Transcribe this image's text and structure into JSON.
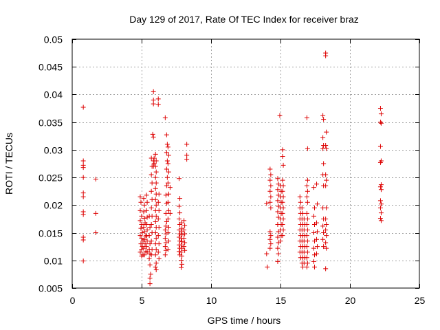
{
  "chart_data": {
    "type": "scatter",
    "title": "Day 129 of 2017, Rate Of TEC Index for receiver braz",
    "xlabel": "GPS time / hours",
    "ylabel": "ROTI / TECUs",
    "xlim": [
      0,
      25
    ],
    "ylim": [
      0.005,
      0.05
    ],
    "xticks": [
      0,
      5,
      10,
      15,
      20,
      25
    ],
    "xtick_labels": [
      "0",
      "5",
      "10",
      "15",
      "20",
      "25"
    ],
    "yticks": [
      0.005,
      0.01,
      0.015,
      0.02,
      0.025,
      0.03,
      0.035,
      0.04,
      0.045,
      0.05
    ],
    "ytick_labels": [
      "0.005",
      "0.01",
      "0.015",
      "0.02",
      "0.025",
      "0.03",
      "0.035",
      "0.04",
      "0.045",
      "0.05"
    ],
    "grid": true,
    "marker": "plus",
    "marker_color": "#dd0000",
    "axis_color": "#000000",
    "grid_color": "#a0a0a0",
    "points": [
      [
        0.8,
        0.0377
      ],
      [
        0.8,
        0.028
      ],
      [
        0.8,
        0.0272
      ],
      [
        0.8,
        0.0268
      ],
      [
        0.8,
        0.025
      ],
      [
        0.8,
        0.0222
      ],
      [
        0.8,
        0.0215
      ],
      [
        0.8,
        0.0188
      ],
      [
        0.8,
        0.0183
      ],
      [
        0.8,
        0.0142
      ],
      [
        0.8,
        0.0137
      ],
      [
        0.8,
        0.0099
      ],
      [
        1.7,
        0.0247
      ],
      [
        1.7,
        0.0185
      ],
      [
        1.7,
        0.015
      ],
      [
        4.9,
        0.0215
      ],
      [
        4.95,
        0.0205
      ],
      [
        4.9,
        0.019
      ],
      [
        5.0,
        0.018
      ],
      [
        4.9,
        0.0172
      ],
      [
        5.0,
        0.0165
      ],
      [
        4.95,
        0.0158
      ],
      [
        5.05,
        0.015
      ],
      [
        4.9,
        0.0145
      ],
      [
        5.0,
        0.014
      ],
      [
        5.1,
        0.0135
      ],
      [
        4.95,
        0.013
      ],
      [
        5.05,
        0.0125
      ],
      [
        5.0,
        0.012
      ],
      [
        4.9,
        0.0115
      ],
      [
        5.1,
        0.011
      ],
      [
        5.0,
        0.0108
      ],
      [
        5.15,
        0.0212
      ],
      [
        5.2,
        0.02
      ],
      [
        5.15,
        0.0188
      ],
      [
        5.2,
        0.0176
      ],
      [
        5.25,
        0.0168
      ],
      [
        5.15,
        0.016
      ],
      [
        5.2,
        0.0152
      ],
      [
        5.3,
        0.0144
      ],
      [
        5.2,
        0.0138
      ],
      [
        5.25,
        0.013
      ],
      [
        5.15,
        0.0122
      ],
      [
        5.3,
        0.0116
      ],
      [
        5.2,
        0.011
      ],
      [
        5.35,
        0.0218
      ],
      [
        5.4,
        0.0205
      ],
      [
        5.35,
        0.019
      ],
      [
        5.4,
        0.0178
      ],
      [
        5.35,
        0.0165
      ],
      [
        5.4,
        0.0155
      ],
      [
        5.35,
        0.0145
      ],
      [
        5.4,
        0.0135
      ],
      [
        5.35,
        0.0125
      ],
      [
        5.4,
        0.0115
      ],
      [
        5.55,
        0.018
      ],
      [
        5.6,
        0.016
      ],
      [
        5.55,
        0.0145
      ],
      [
        5.6,
        0.013
      ],
      [
        5.55,
        0.012
      ],
      [
        5.6,
        0.0112
      ],
      [
        5.55,
        0.0103
      ],
      [
        5.6,
        0.0092
      ],
      [
        5.65,
        0.0075
      ],
      [
        5.6,
        0.0068
      ],
      [
        5.6,
        0.0058
      ],
      [
        5.7,
        0.0285
      ],
      [
        5.75,
        0.027
      ],
      [
        5.7,
        0.0255
      ],
      [
        5.75,
        0.024
      ],
      [
        5.7,
        0.0225
      ],
      [
        5.75,
        0.021
      ],
      [
        5.7,
        0.0195
      ],
      [
        5.75,
        0.018
      ],
      [
        5.7,
        0.0165
      ],
      [
        5.75,
        0.015
      ],
      [
        5.7,
        0.0135
      ],
      [
        5.75,
        0.012
      ],
      [
        5.7,
        0.011
      ],
      [
        5.85,
        0.0405
      ],
      [
        5.85,
        0.039
      ],
      [
        5.85,
        0.0383
      ],
      [
        5.8,
        0.0328
      ],
      [
        5.85,
        0.0323
      ],
      [
        5.9,
        0.0285
      ],
      [
        5.85,
        0.028
      ],
      [
        5.9,
        0.0275
      ],
      [
        5.85,
        0.027
      ],
      [
        6.0,
        0.0292
      ],
      [
        6.05,
        0.028
      ],
      [
        6.0,
        0.027
      ],
      [
        6.05,
        0.026
      ],
      [
        6.0,
        0.025
      ],
      [
        6.05,
        0.024
      ],
      [
        6.0,
        0.023
      ],
      [
        6.05,
        0.022
      ],
      [
        6.0,
        0.021
      ],
      [
        6.05,
        0.02
      ],
      [
        6.0,
        0.019
      ],
      [
        6.05,
        0.018
      ],
      [
        6.0,
        0.017
      ],
      [
        6.05,
        0.016
      ],
      [
        6.0,
        0.015
      ],
      [
        6.05,
        0.014
      ],
      [
        6.0,
        0.013
      ],
      [
        6.05,
        0.012
      ],
      [
        6.0,
        0.011
      ],
      [
        6.05,
        0.0095
      ],
      [
        6.0,
        0.0088
      ],
      [
        6.05,
        0.0083
      ],
      [
        6.2,
        0.0392
      ],
      [
        6.2,
        0.0382
      ],
      [
        6.25,
        0.022
      ],
      [
        6.2,
        0.0205
      ],
      [
        6.25,
        0.019
      ],
      [
        6.2,
        0.0175
      ],
      [
        6.25,
        0.016
      ],
      [
        6.2,
        0.0145
      ],
      [
        6.25,
        0.013
      ],
      [
        6.2,
        0.0115
      ],
      [
        6.25,
        0.0103
      ],
      [
        6.7,
        0.0358
      ],
      [
        6.8,
        0.0327
      ],
      [
        6.85,
        0.031
      ],
      [
        6.8,
        0.0295
      ],
      [
        6.85,
        0.028
      ],
      [
        6.8,
        0.0265
      ],
      [
        6.85,
        0.025
      ],
      [
        6.8,
        0.0235
      ],
      [
        6.75,
        0.0218
      ],
      [
        6.8,
        0.0203
      ],
      [
        6.75,
        0.0185
      ],
      [
        6.8,
        0.017
      ],
      [
        6.75,
        0.0162
      ],
      [
        6.7,
        0.0155
      ],
      [
        6.75,
        0.0148
      ],
      [
        6.7,
        0.014
      ],
      [
        6.75,
        0.0132
      ],
      [
        6.7,
        0.0125
      ],
      [
        6.75,
        0.0118
      ],
      [
        6.7,
        0.011
      ],
      [
        6.9,
        0.0305
      ],
      [
        6.95,
        0.029
      ],
      [
        6.9,
        0.0275
      ],
      [
        6.95,
        0.026
      ],
      [
        6.9,
        0.024
      ],
      [
        6.95,
        0.022
      ],
      [
        6.9,
        0.0205
      ],
      [
        6.95,
        0.019
      ],
      [
        6.9,
        0.0175
      ],
      [
        6.95,
        0.016
      ],
      [
        6.9,
        0.015
      ],
      [
        6.95,
        0.0135
      ],
      [
        6.9,
        0.012
      ],
      [
        7.05,
        0.0232
      ],
      [
        7.05,
        0.0185
      ],
      [
        7.7,
        0.0248
      ],
      [
        7.75,
        0.0212
      ],
      [
        7.7,
        0.0198
      ],
      [
        7.75,
        0.0186
      ],
      [
        7.7,
        0.0175
      ],
      [
        7.75,
        0.0165
      ],
      [
        7.7,
        0.0155
      ],
      [
        7.75,
        0.0148
      ],
      [
        7.7,
        0.0142
      ],
      [
        7.75,
        0.0135
      ],
      [
        7.7,
        0.0128
      ],
      [
        7.75,
        0.0122
      ],
      [
        7.7,
        0.0116
      ],
      [
        7.75,
        0.011
      ],
      [
        7.85,
        0.0168
      ],
      [
        7.9,
        0.0158
      ],
      [
        7.85,
        0.0152
      ],
      [
        7.9,
        0.0146
      ],
      [
        7.85,
        0.014
      ],
      [
        7.9,
        0.0134
      ],
      [
        7.85,
        0.0128
      ],
      [
        7.9,
        0.0122
      ],
      [
        7.85,
        0.0115
      ],
      [
        7.9,
        0.0108
      ],
      [
        7.85,
        0.01
      ],
      [
        7.9,
        0.0093
      ],
      [
        7.85,
        0.0087
      ],
      [
        8.05,
        0.0172
      ],
      [
        8.1,
        0.0163
      ],
      [
        8.05,
        0.0155
      ],
      [
        8.1,
        0.0148
      ],
      [
        8.05,
        0.014
      ],
      [
        8.1,
        0.0132
      ],
      [
        8.05,
        0.0125
      ],
      [
        8.1,
        0.0118
      ],
      [
        8.25,
        0.031
      ],
      [
        8.25,
        0.029
      ],
      [
        8.25,
        0.0283
      ],
      [
        14.0,
        0.0112
      ],
      [
        14.05,
        0.0088
      ],
      [
        14.0,
        0.0203
      ],
      [
        14.25,
        0.0265
      ],
      [
        14.3,
        0.0255
      ],
      [
        14.25,
        0.0245
      ],
      [
        14.3,
        0.0235
      ],
      [
        14.25,
        0.0225
      ],
      [
        14.3,
        0.0215
      ],
      [
        14.25,
        0.0205
      ],
      [
        14.3,
        0.0195
      ],
      [
        14.25,
        0.0152
      ],
      [
        14.3,
        0.0145
      ],
      [
        14.25,
        0.0138
      ],
      [
        14.3,
        0.013
      ],
      [
        14.25,
        0.0122
      ],
      [
        14.8,
        0.0248
      ],
      [
        14.85,
        0.0238
      ],
      [
        14.8,
        0.0228
      ],
      [
        14.85,
        0.0218
      ],
      [
        14.8,
        0.0208
      ],
      [
        14.85,
        0.0198
      ],
      [
        14.8,
        0.0188
      ],
      [
        14.85,
        0.0178
      ],
      [
        14.8,
        0.0165
      ],
      [
        14.85,
        0.0152
      ],
      [
        14.8,
        0.0142
      ],
      [
        14.85,
        0.0132
      ],
      [
        14.8,
        0.0122
      ],
      [
        14.85,
        0.0112
      ],
      [
        14.8,
        0.0098
      ],
      [
        14.95,
        0.0362
      ],
      [
        15.0,
        0.0235
      ],
      [
        15.05,
        0.0225
      ],
      [
        15.0,
        0.0215
      ],
      [
        15.05,
        0.0205
      ],
      [
        15.0,
        0.0195
      ],
      [
        15.05,
        0.0185
      ],
      [
        15.0,
        0.0175
      ],
      [
        15.05,
        0.0165
      ],
      [
        15.0,
        0.0155
      ],
      [
        15.05,
        0.0145
      ],
      [
        15.0,
        0.0135
      ],
      [
        15.15,
        0.03
      ],
      [
        15.15,
        0.0288
      ],
      [
        15.2,
        0.0272
      ],
      [
        15.15,
        0.0245
      ],
      [
        15.2,
        0.0235
      ],
      [
        15.15,
        0.0225
      ],
      [
        15.2,
        0.0215
      ],
      [
        15.15,
        0.0205
      ],
      [
        15.2,
        0.0195
      ],
      [
        15.15,
        0.0185
      ],
      [
        15.2,
        0.0175
      ],
      [
        15.15,
        0.0165
      ],
      [
        15.2,
        0.0155
      ],
      [
        15.15,
        0.0145
      ],
      [
        16.4,
        0.0215
      ],
      [
        16.45,
        0.0205
      ],
      [
        16.4,
        0.0195
      ],
      [
        16.45,
        0.0185
      ],
      [
        16.4,
        0.0175
      ],
      [
        16.45,
        0.0165
      ],
      [
        16.4,
        0.0155
      ],
      [
        16.45,
        0.0145
      ],
      [
        16.4,
        0.0135
      ],
      [
        16.45,
        0.0125
      ],
      [
        16.4,
        0.0115
      ],
      [
        16.45,
        0.0105
      ],
      [
        16.55,
        0.0195
      ],
      [
        16.6,
        0.0185
      ],
      [
        16.55,
        0.0175
      ],
      [
        16.6,
        0.0165
      ],
      [
        16.55,
        0.0155
      ],
      [
        16.6,
        0.0145
      ],
      [
        16.55,
        0.0135
      ],
      [
        16.6,
        0.0125
      ],
      [
        16.55,
        0.0115
      ],
      [
        16.6,
        0.0105
      ],
      [
        16.55,
        0.0095
      ],
      [
        16.6,
        0.0088
      ],
      [
        16.7,
        0.0175
      ],
      [
        16.75,
        0.0165
      ],
      [
        16.7,
        0.0155
      ],
      [
        16.75,
        0.0145
      ],
      [
        16.7,
        0.0135
      ],
      [
        16.75,
        0.0125
      ],
      [
        16.7,
        0.0115
      ],
      [
        16.75,
        0.0105
      ],
      [
        16.7,
        0.0095
      ],
      [
        16.9,
        0.0358
      ],
      [
        16.95,
        0.0302
      ],
      [
        16.95,
        0.0245
      ],
      [
        16.9,
        0.0235
      ],
      [
        16.95,
        0.0225
      ],
      [
        16.9,
        0.0215
      ],
      [
        16.95,
        0.0205
      ],
      [
        16.9,
        0.0185
      ],
      [
        16.95,
        0.0175
      ],
      [
        16.9,
        0.0165
      ],
      [
        16.95,
        0.0155
      ],
      [
        16.9,
        0.0145
      ],
      [
        16.95,
        0.0135
      ],
      [
        16.9,
        0.0125
      ],
      [
        16.95,
        0.0115
      ],
      [
        16.9,
        0.0105
      ],
      [
        16.95,
        0.0095
      ],
      [
        16.9,
        0.0088
      ],
      [
        17.4,
        0.0232
      ],
      [
        17.45,
        0.0195
      ],
      [
        17.4,
        0.018
      ],
      [
        17.45,
        0.0165
      ],
      [
        17.4,
        0.015
      ],
      [
        17.45,
        0.0135
      ],
      [
        17.4,
        0.0122
      ],
      [
        17.45,
        0.011
      ],
      [
        17.4,
        0.0098
      ],
      [
        17.45,
        0.0088
      ],
      [
        17.6,
        0.0238
      ],
      [
        17.65,
        0.0202
      ],
      [
        17.6,
        0.0168
      ],
      [
        17.65,
        0.0152
      ],
      [
        17.6,
        0.0138
      ],
      [
        17.65,
        0.0125
      ],
      [
        17.6,
        0.0112
      ],
      [
        18.05,
        0.0362
      ],
      [
        18.1,
        0.0355
      ],
      [
        18.05,
        0.0322
      ],
      [
        18.1,
        0.0308
      ],
      [
        18.05,
        0.0302
      ],
      [
        18.1,
        0.0275
      ],
      [
        18.05,
        0.0255
      ],
      [
        18.1,
        0.0235
      ],
      [
        18.05,
        0.0195
      ],
      [
        18.1,
        0.0175
      ],
      [
        18.05,
        0.0162
      ],
      [
        18.1,
        0.015
      ],
      [
        18.05,
        0.0138
      ],
      [
        18.1,
        0.0125
      ],
      [
        18.25,
        0.0475
      ],
      [
        18.25,
        0.047
      ],
      [
        18.3,
        0.0332
      ],
      [
        18.25,
        0.0308
      ],
      [
        18.3,
        0.0302
      ],
      [
        18.25,
        0.0255
      ],
      [
        18.3,
        0.0245
      ],
      [
        18.25,
        0.0235
      ],
      [
        18.3,
        0.0195
      ],
      [
        18.25,
        0.0175
      ],
      [
        18.3,
        0.0165
      ],
      [
        18.25,
        0.0155
      ],
      [
        18.3,
        0.0145
      ],
      [
        18.25,
        0.0132
      ],
      [
        18.3,
        0.0122
      ],
      [
        18.25,
        0.0085
      ],
      [
        22.2,
        0.0375
      ],
      [
        22.25,
        0.0365
      ],
      [
        22.2,
        0.035
      ],
      [
        22.25,
        0.0348
      ],
      [
        22.2,
        0.0306
      ],
      [
        22.25,
        0.028
      ],
      [
        22.2,
        0.0277
      ],
      [
        22.25,
        0.0237
      ],
      [
        22.2,
        0.0233
      ],
      [
        22.25,
        0.0228
      ],
      [
        22.2,
        0.0208
      ],
      [
        22.25,
        0.0202
      ],
      [
        22.2,
        0.0195
      ],
      [
        22.25,
        0.0186
      ],
      [
        22.2,
        0.0176
      ],
      [
        22.25,
        0.0172
      ]
    ]
  }
}
